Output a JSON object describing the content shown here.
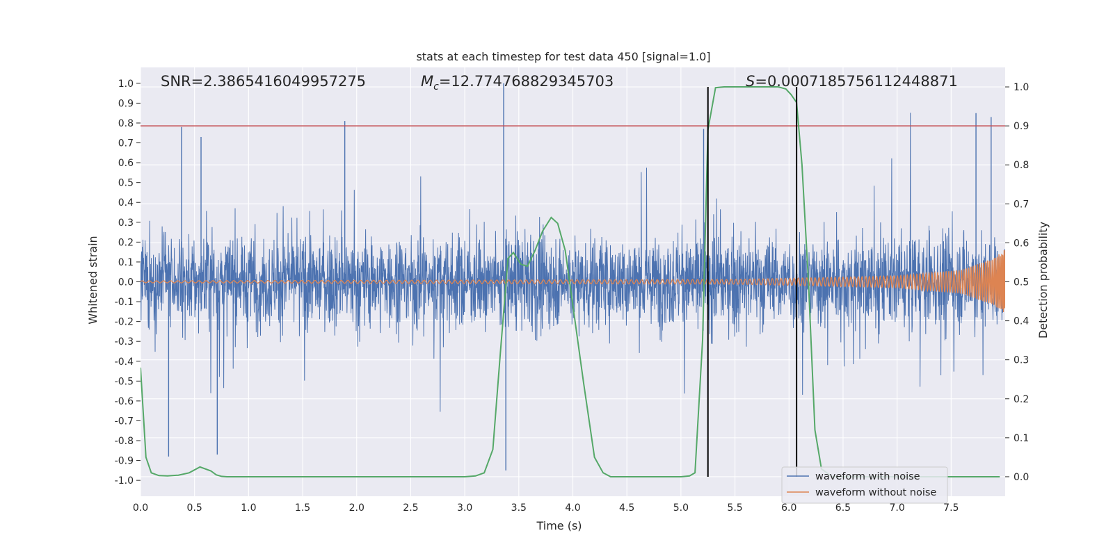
{
  "chart_data": {
    "type": "line",
    "title": "stats at each timestep for test data 450 [signal=1.0]",
    "xlabel": "Time (s)",
    "ylabel": "Whitened strain",
    "y2label": "Detection probability",
    "xlim": [
      0.0,
      8.0
    ],
    "ylim": [
      -1.08,
      1.08
    ],
    "y2lim": [
      -0.05,
      1.05
    ],
    "x_ticks": [
      "0.0",
      "0.5",
      "1.0",
      "1.5",
      "2.0",
      "2.5",
      "3.0",
      "3.5",
      "4.0",
      "4.5",
      "5.0",
      "5.5",
      "6.0",
      "6.5",
      "7.0",
      "7.5"
    ],
    "y_ticks": [
      "1.0",
      "0.9",
      "0.8",
      "0.7",
      "0.6",
      "0.5",
      "0.4",
      "0.3",
      "0.2",
      "0.1",
      "0.0",
      "-0.1",
      "-0.2",
      "-0.3",
      "-0.4",
      "-0.5",
      "-0.6",
      "-0.7",
      "-0.8",
      "-0.9",
      "-1.0"
    ],
    "y2_ticks": [
      "1.0",
      "0.9",
      "0.8",
      "0.7",
      "0.6",
      "0.5",
      "0.4",
      "0.3",
      "0.2",
      "0.1",
      "0.0"
    ],
    "annotations": {
      "snr": "SNR=2.3865416049957275",
      "mc_prefix": "M",
      "mc_sub": "c",
      "mc_value": "=12.774768829345703",
      "s_prefix": "S",
      "s_value": "=0.0007185756112448871"
    },
    "threshold_line": {
      "y2": 0.9,
      "color": "#c44e52"
    },
    "vertical_lines_x": [
      5.25,
      6.07
    ],
    "series": [
      {
        "name": "waveform with noise",
        "color": "#4c72b0",
        "description": "dense noisy whitened strain, amplitude roughly +/-0.2 to +/-0.6 with spikes to about 1.0 and -0.95",
        "spikes": [
          {
            "x": 0.26,
            "y": -0.88
          },
          {
            "x": 0.38,
            "y": 0.78
          },
          {
            "x": 0.56,
            "y": 0.73
          },
          {
            "x": 0.71,
            "y": -0.87
          },
          {
            "x": 1.89,
            "y": 0.81
          },
          {
            "x": 3.36,
            "y": 1.0
          },
          {
            "x": 3.38,
            "y": -0.95
          },
          {
            "x": 5.21,
            "y": 0.77
          },
          {
            "x": 7.73,
            "y": 0.85
          },
          {
            "x": 7.87,
            "y": 0.83
          }
        ]
      },
      {
        "name": "waveform without noise",
        "color": "#dd8452",
        "description": "chirp signal, amplitude about 0.005 growing to about 0.17 near t=8.0",
        "envelope": [
          {
            "x": 0.0,
            "a": 0.005
          },
          {
            "x": 5.5,
            "a": 0.012
          },
          {
            "x": 7.0,
            "a": 0.03
          },
          {
            "x": 7.6,
            "a": 0.06
          },
          {
            "x": 7.9,
            "a": 0.12
          },
          {
            "x": 7.99,
            "a": 0.16
          }
        ]
      },
      {
        "name": "detection probability",
        "color": "#55a868",
        "axis": "right",
        "x": [
          0.0,
          0.05,
          0.1,
          0.17,
          0.25,
          0.35,
          0.45,
          0.55,
          0.65,
          0.7,
          0.75,
          0.8,
          1.0,
          2.0,
          3.0,
          3.1,
          3.18,
          3.26,
          3.33,
          3.4,
          3.45,
          3.52,
          3.58,
          3.65,
          3.72,
          3.8,
          3.86,
          3.93,
          4.0,
          4.1,
          4.2,
          4.28,
          4.35,
          5.0,
          5.08,
          5.13,
          5.2,
          5.25,
          5.32,
          5.4,
          5.5,
          5.9,
          5.97,
          6.02,
          6.07,
          6.12,
          6.18,
          6.24,
          6.3,
          6.4,
          7.0,
          7.95
        ],
        "values": [
          0.28,
          0.05,
          0.01,
          0.003,
          0.002,
          0.004,
          0.01,
          0.025,
          0.015,
          0.005,
          0.001,
          0.0,
          0.0,
          0.0,
          0.0,
          0.002,
          0.01,
          0.07,
          0.32,
          0.56,
          0.575,
          0.545,
          0.54,
          0.58,
          0.63,
          0.665,
          0.65,
          0.58,
          0.44,
          0.24,
          0.05,
          0.01,
          0.0,
          0.0,
          0.002,
          0.01,
          0.35,
          0.89,
          0.998,
          1.0,
          1.0,
          1.0,
          0.995,
          0.98,
          0.96,
          0.8,
          0.5,
          0.12,
          0.02,
          0.0,
          0.0,
          0.0
        ]
      }
    ],
    "legend": {
      "placement": "lower-right",
      "entries": [
        {
          "label": "waveform with noise",
          "color": "#4c72b0"
        },
        {
          "label": "waveform without noise",
          "color": "#dd8452"
        }
      ]
    },
    "grid": true
  }
}
